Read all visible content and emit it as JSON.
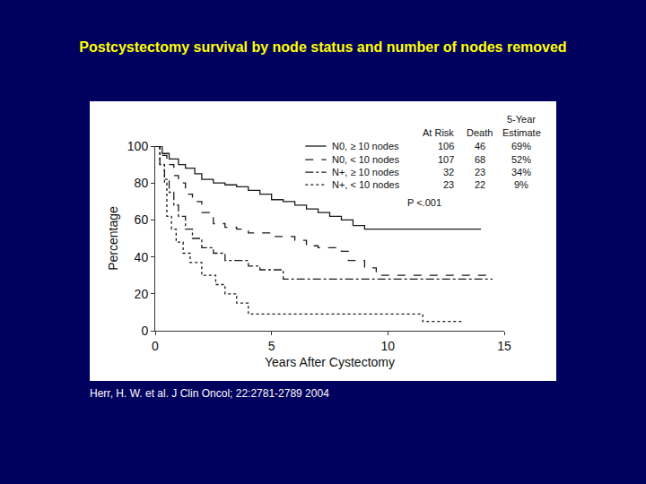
{
  "chart_data": {
    "type": "line",
    "title": "Postcystectomy survival by node status and number of nodes removed",
    "source": "Herr, H. W. et al. J Clin Oncol; 22:2781-2789 2004",
    "x_label": "Years After Cystectomy",
    "y_label": "Percentage",
    "xlim": [
      0,
      15
    ],
    "xticks": [
      0,
      5,
      10,
      15
    ],
    "ylim": [
      0,
      100
    ],
    "yticks": [
      0,
      20,
      40,
      60,
      80,
      100
    ],
    "grid": false,
    "legend_table": {
      "header_top": "5-Year",
      "columns": [
        "At Risk",
        "Death",
        "Estimate"
      ]
    },
    "annotations": [
      "P <.001"
    ],
    "series": [
      {
        "name": "N0, ≥ 10 nodes",
        "line_style": "solid",
        "color": "#1a1a1a",
        "x": [
          0,
          0.3,
          0.6,
          1,
          1.3,
          1.7,
          2,
          2.5,
          3,
          3.5,
          4,
          4.5,
          5,
          5.5,
          6,
          6.5,
          7,
          7.5,
          8,
          8.5,
          9,
          14
        ],
        "values": [
          100,
          96,
          93,
          90,
          88,
          85,
          82,
          80,
          79,
          78,
          76,
          74,
          71,
          70,
          68,
          66,
          64,
          62,
          60,
          57,
          55,
          55
        ],
        "at_risk": 106,
        "deaths": 46,
        "estimate": {
          "value": 69,
          "label": "69%"
        }
      },
      {
        "name": "N0, < 10 nodes",
        "line_style": "dashed",
        "color": "#1a1a1a",
        "x": [
          0,
          0.2,
          0.5,
          0.8,
          1,
          1.3,
          1.6,
          2,
          2.5,
          3,
          3.5,
          4,
          5,
          6,
          6.5,
          7,
          8,
          8.3,
          9,
          9.5,
          14.5
        ],
        "values": [
          100,
          95,
          90,
          84,
          80,
          74,
          70,
          64,
          58,
          56,
          55,
          53,
          51,
          49,
          46,
          45,
          43,
          38,
          34,
          30,
          30
        ],
        "at_risk": 107,
        "deaths": 68,
        "estimate": {
          "value": 52,
          "label": "52%"
        }
      },
      {
        "name": "N+, ≥ 10 nodes",
        "line_style": "dashdot",
        "color": "#1a1a1a",
        "x": [
          0,
          0.2,
          0.4,
          0.6,
          0.8,
          1,
          1.3,
          1.6,
          2,
          2.5,
          3,
          4,
          4.5,
          5.5,
          14.5
        ],
        "values": [
          100,
          90,
          82,
          75,
          68,
          62,
          55,
          50,
          45,
          42,
          38,
          35,
          33,
          28,
          28
        ],
        "at_risk": 32,
        "deaths": 23,
        "estimate": {
          "value": 34,
          "label": "34%"
        }
      },
      {
        "name": "N+, < 10 nodes",
        "line_style": "dotted",
        "color": "#1a1a1a",
        "x": [
          0,
          0.2,
          0.4,
          0.5,
          0.7,
          0.9,
          1.2,
          1.5,
          2,
          2.6,
          3,
          3.5,
          4,
          11.5,
          13.2
        ],
        "values": [
          100,
          90,
          80,
          62,
          55,
          48,
          42,
          37,
          30,
          25,
          20,
          15,
          9,
          5,
          5
        ],
        "at_risk": 23,
        "deaths": 22,
        "estimate": {
          "value": 9,
          "label": "9%"
        }
      }
    ]
  }
}
